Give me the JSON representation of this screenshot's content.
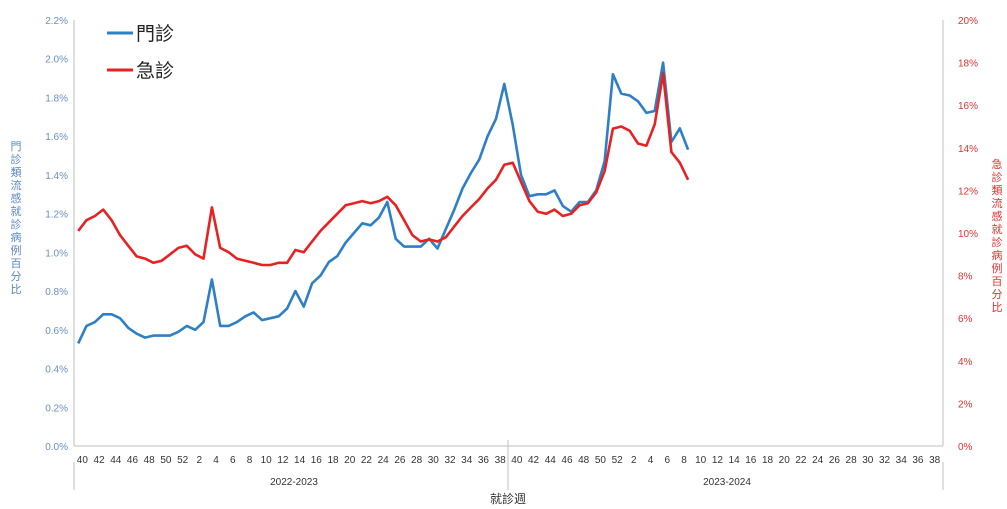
{
  "chart_data": {
    "type": "line",
    "title": "",
    "xlabel": "就診週",
    "ylabel_left": "門診類流感就診病例百分比",
    "ylabel_right": "急診類流感就診病例百分比",
    "ylim_left": [
      0,
      2.2
    ],
    "ylim_right": [
      0,
      20
    ],
    "left_ticks": [
      "0.0%",
      "0.2%",
      "0.4%",
      "0.6%",
      "0.8%",
      "1.0%",
      "1.2%",
      "1.4%",
      "1.6%",
      "1.8%",
      "2.0%",
      "2.2%"
    ],
    "right_ticks": [
      "0%",
      "2%",
      "4%",
      "6%",
      "8%",
      "10%",
      "12%",
      "14%",
      "16%",
      "18%",
      "20%"
    ],
    "x_tick_labels": [
      "40",
      "42",
      "44",
      "46",
      "48",
      "50",
      "52",
      "2",
      "4",
      "6",
      "8",
      "10",
      "12",
      "14",
      "16",
      "18",
      "20",
      "22",
      "24",
      "26",
      "28",
      "30",
      "32",
      "34",
      "36",
      "38",
      "40",
      "42",
      "44",
      "46",
      "48",
      "50",
      "52",
      "2",
      "4",
      "6",
      "8",
      "10",
      "12",
      "14",
      "16",
      "18",
      "20",
      "22",
      "24",
      "26",
      "28",
      "30",
      "32",
      "34",
      "36",
      "38"
    ],
    "seasons": [
      "2022-2023",
      "2023-2024"
    ],
    "legend_position": "top-left",
    "grid": false,
    "series": [
      {
        "name": "門診",
        "axis": "left",
        "color": "#2e7fc6",
        "values": [
          0.53,
          0.62,
          0.64,
          0.68,
          0.68,
          0.66,
          0.61,
          0.58,
          0.56,
          0.57,
          0.57,
          0.57,
          0.59,
          0.62,
          0.6,
          0.64,
          0.86,
          0.62,
          0.62,
          0.64,
          0.67,
          0.69,
          0.65,
          0.66,
          0.67,
          0.71,
          0.8,
          0.72,
          0.84,
          0.88,
          0.95,
          0.98,
          1.05,
          1.1,
          1.15,
          1.14,
          1.18,
          1.26,
          1.07,
          1.03,
          1.03,
          1.03,
          1.07,
          1.02,
          1.12,
          1.22,
          1.33,
          1.41,
          1.48,
          1.6,
          1.69,
          1.87,
          1.66,
          1.4,
          1.29,
          1.3,
          1.3,
          1.32,
          1.24,
          1.21,
          1.26,
          1.26,
          1.32,
          1.47,
          1.92,
          1.82,
          1.81,
          1.78,
          1.72,
          1.73,
          1.98,
          1.57,
          1.64,
          1.53
        ]
      },
      {
        "name": "急診",
        "axis": "right",
        "color": "#e82222",
        "values": [
          10.1,
          10.6,
          10.8,
          11.1,
          10.6,
          9.9,
          9.4,
          8.9,
          8.8,
          8.6,
          8.7,
          9.0,
          9.3,
          9.4,
          9.0,
          8.8,
          11.2,
          9.3,
          9.1,
          8.8,
          8.7,
          8.6,
          8.5,
          8.5,
          8.6,
          8.6,
          9.2,
          9.1,
          9.6,
          10.1,
          10.5,
          10.9,
          11.3,
          11.4,
          11.5,
          11.4,
          11.5,
          11.7,
          11.3,
          10.6,
          9.9,
          9.6,
          9.7,
          9.6,
          9.8,
          10.3,
          10.8,
          11.2,
          11.6,
          12.1,
          12.5,
          13.2,
          13.3,
          12.4,
          11.5,
          11.0,
          10.9,
          11.1,
          10.8,
          10.9,
          11.3,
          11.4,
          11.9,
          12.9,
          14.9,
          15.0,
          14.8,
          14.2,
          14.1,
          15.1,
          17.5,
          13.8,
          13.3,
          12.5
        ]
      }
    ]
  }
}
